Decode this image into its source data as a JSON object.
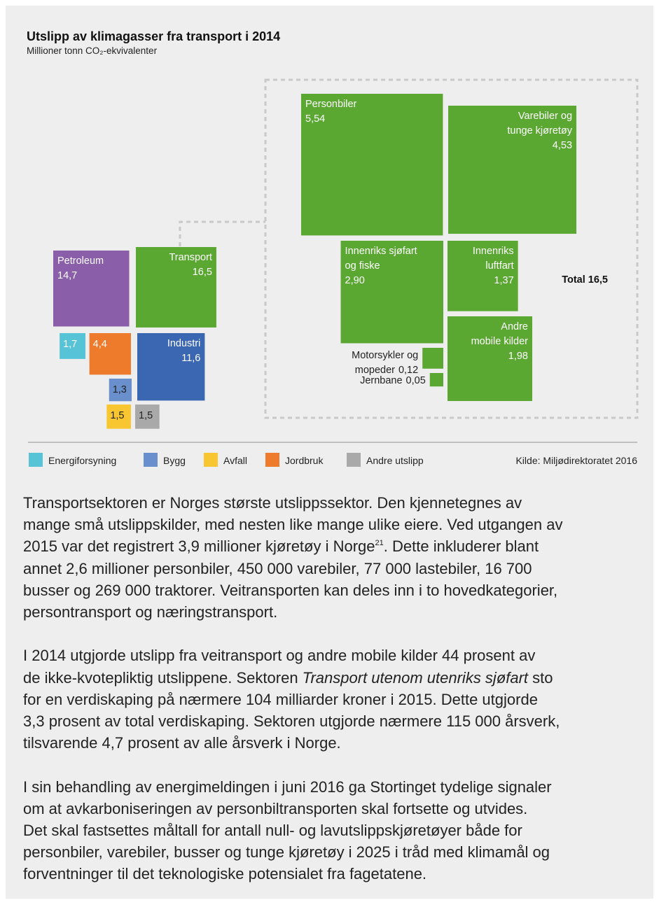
{
  "chart_data": {
    "type": "square-area",
    "title": "Utslipp av klimagasser fra transport i 2014",
    "subtitle": "Millioner tonn CO₂-ekvivalenter",
    "sectors": [
      {
        "name": [
          "Petroleum"
        ],
        "value": 14.7,
        "value_label": "14,7",
        "color": "#8a5ea8"
      },
      {
        "name": [
          "Transport"
        ],
        "value": 16.5,
        "value_label": "16,5",
        "color": "#5aa832"
      },
      {
        "name": [
          "Industri"
        ],
        "value": 11.6,
        "value_label": "11,6",
        "color": "#3b66b1"
      },
      {
        "name": [],
        "value": 1.7,
        "value_label": "1,7",
        "color": "#57c3d6"
      },
      {
        "name": [],
        "value": 4.4,
        "value_label": "4,4",
        "color": "#ee7a2b"
      },
      {
        "name": [],
        "value": 1.3,
        "value_label": "1,3",
        "color": "#6a8fcd"
      },
      {
        "name": [],
        "value": 1.5,
        "value_label": "1,5",
        "color": "#f8c630"
      },
      {
        "name": [],
        "value": 1.5,
        "value_label": "1,5",
        "color": "#a9a9a9"
      }
    ],
    "transport": [
      {
        "name": [
          "Personbiler"
        ],
        "value": 5.54,
        "value_label": "5,54",
        "color": "#5aa832"
      },
      {
        "name": [
          "Varebiler og",
          "tunge kjøretøy"
        ],
        "value": 4.53,
        "value_label": "4,53",
        "color": "#5aa832"
      },
      {
        "name": [
          "Innenriks sjøfart",
          "og fiske"
        ],
        "value": 2.9,
        "value_label": "2,90",
        "color": "#5aa832"
      },
      {
        "name": [
          "Innenriks",
          "luftfart"
        ],
        "value": 1.37,
        "value_label": "1,37",
        "color": "#5aa832"
      },
      {
        "name": [
          "Andre",
          "mobile kilder"
        ],
        "value": 1.98,
        "value_label": "1,98",
        "color": "#5aa832"
      },
      {
        "name": [
          "Motorsykler og",
          "mopeder"
        ],
        "value": 0.12,
        "value_label": "0,12",
        "color": "#5aa832"
      },
      {
        "name": [
          "Jernbane"
        ],
        "value": 0.05,
        "value_label": "0,05",
        "color": "#5aa832"
      }
    ],
    "total_label": "Total 16,5",
    "legend": [
      {
        "name": "Energiforsyning",
        "color": "#57c3d6"
      },
      {
        "name": "Bygg",
        "color": "#6a8fcd"
      },
      {
        "name": "Avfall",
        "color": "#f8c630"
      },
      {
        "name": "Jordbruk",
        "color": "#ee7a2b"
      },
      {
        "name": "Andre utslipp",
        "color": "#a9a9a9"
      }
    ],
    "source": "Kilde: Miljødirektoratet 2016"
  },
  "paragraphs": [
    [
      [
        "Transportsektoren er Norges største utslippssektor. Den kjennetegnes av"
      ],
      [
        "mange små utslippskilder, med nesten like mange ulike eiere. Ved utgangen av"
      ],
      [
        "2015 var det registrert 3,9 millioner kjøretøy i Norge",
        {
          "sup": "21"
        },
        ". Dette inkluderer blant"
      ],
      [
        "annet 2,6 millioner personbiler, 450 000 varebiler, 77 000 lastebiler, 16 700"
      ],
      [
        "busser og 269 000 traktorer. Veitransporten kan deles inn i to hovedkategorier,"
      ],
      [
        "persontransport og næringstransport."
      ]
    ],
    [
      [
        "I 2014 utgjorde utslipp fra veitransport og andre mobile kilder 44 prosent av"
      ],
      [
        "de ikke-kvotepliktig utslippene. Sektoren ",
        {
          "italic": "Transport utenom utenriks sjøfart"
        },
        " sto"
      ],
      [
        "for en verdiskaping på nærmere 104 milliarder kroner i 2015. Dette utgjorde"
      ],
      [
        "3,3 prosent av total verdiskaping. Sektoren utgjorde nærmere 115 000 årsverk,"
      ],
      [
        "tilsvarende 4,7 prosent av alle årsverk i Norge."
      ]
    ],
    [
      [
        "I sin behandling av energimeldingen i juni 2016 ga Stortinget tydelige signaler"
      ],
      [
        "om at avkarboniseringen av personbiltransporten skal fortsette og utvides."
      ],
      [
        "Det skal fastsettes måltall for antall null- og lavutslippskjøretøyer både for"
      ],
      [
        "personbiler, varebiler, busser og tunge kjøretøy i 2025 i tråd med klimamål og"
      ],
      [
        "forventninger til det teknologiske potensialet fra fagetatene."
      ]
    ]
  ]
}
